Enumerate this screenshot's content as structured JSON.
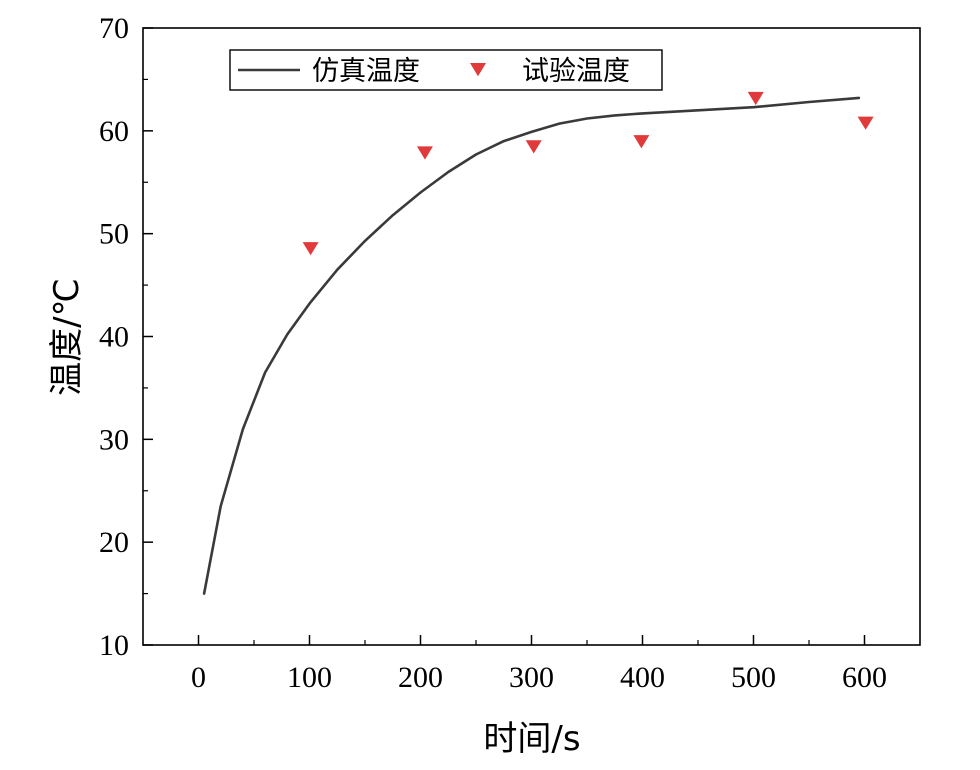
{
  "chart_data": {
    "type": "line",
    "xlabel": "时间/s",
    "ylabel": "温度/℃",
    "xlim": [
      -50,
      650
    ],
    "ylim": [
      10,
      70
    ],
    "x_ticks": [
      0,
      100,
      200,
      300,
      400,
      500,
      600
    ],
    "y_ticks": [
      10,
      20,
      30,
      40,
      50,
      60,
      70
    ],
    "grid": false,
    "legend_position": "top-left",
    "series": [
      {
        "name": "仿真温度",
        "type": "line",
        "color": "#3a3a3a",
        "x": [
          5,
          20,
          40,
          60,
          80,
          100,
          125,
          150,
          175,
          200,
          225,
          250,
          275,
          300,
          325,
          350,
          375,
          400,
          450,
          500,
          550,
          595
        ],
        "y": [
          15.0,
          23.5,
          31.0,
          36.5,
          40.2,
          43.2,
          46.5,
          49.3,
          51.8,
          54.0,
          56.0,
          57.7,
          59.0,
          59.9,
          60.7,
          61.2,
          61.5,
          61.7,
          62.0,
          62.3,
          62.8,
          63.2
        ]
      },
      {
        "name": "试验温度",
        "type": "scatter",
        "marker": "triangle-down",
        "color": "#e03a3a",
        "x": [
          101,
          204,
          302,
          399,
          502,
          601
        ],
        "y": [
          48.6,
          57.9,
          58.5,
          59.0,
          63.2,
          60.8
        ]
      }
    ]
  }
}
